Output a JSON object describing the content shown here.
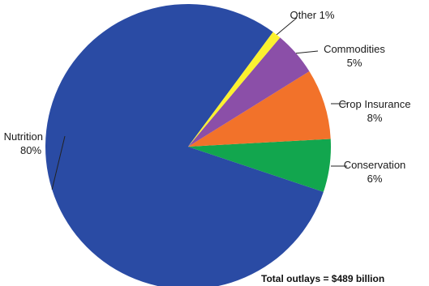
{
  "chart_data": {
    "type": "pie",
    "slices": [
      {
        "label": "Nutrition",
        "value": 80,
        "value_label": "80%",
        "color": "#2a4ba4"
      },
      {
        "label": "Conservation",
        "value": 6,
        "value_label": "6%",
        "color": "#12a64e"
      },
      {
        "label": "Crop Insurance",
        "value": 8,
        "value_label": "8%",
        "color": "#f2722a"
      },
      {
        "label": "Commodities",
        "value": 5,
        "value_label": "5%",
        "color": "#8b4fa8"
      },
      {
        "label": "Other 1%",
        "value": 1,
        "value_label": "",
        "color": "#fbf12f"
      }
    ],
    "annotation": "Total outlays = $489 billion"
  }
}
